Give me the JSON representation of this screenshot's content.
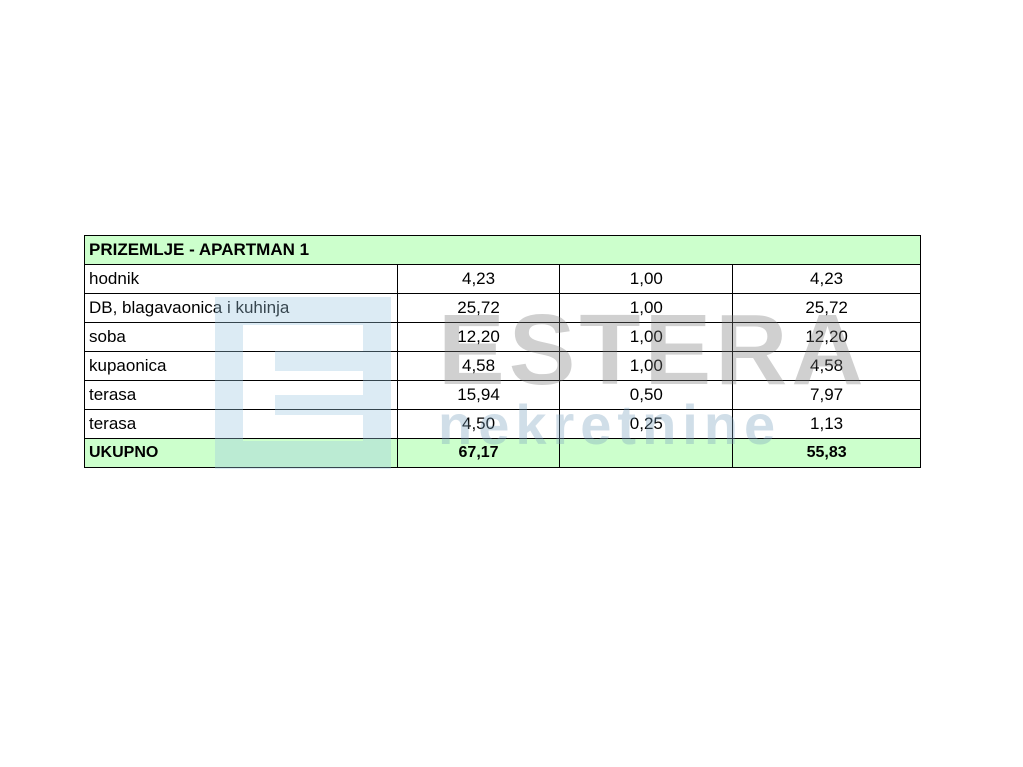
{
  "table": {
    "title": "PRIZEMLJE - APARTMAN 1",
    "rows": [
      [
        "hodnik",
        "4,23",
        "1,00",
        "4,23"
      ],
      [
        "DB, blagavaonica i kuhinja",
        "25,72",
        "1,00",
        "25,72"
      ],
      [
        "soba",
        "12,20",
        "1,00",
        "12,20"
      ],
      [
        "kupaonica",
        "4,58",
        "1,00",
        "4,58"
      ],
      [
        "terasa",
        "15,94",
        "0,50",
        "7,97"
      ],
      [
        "terasa",
        "4,50",
        "0,25",
        "1,13"
      ]
    ],
    "total": {
      "label": "UKUPNO",
      "area": "67,17",
      "net": "55,83"
    }
  },
  "watermark": {
    "brand": "ESTERA",
    "sub": "nekretnine"
  }
}
